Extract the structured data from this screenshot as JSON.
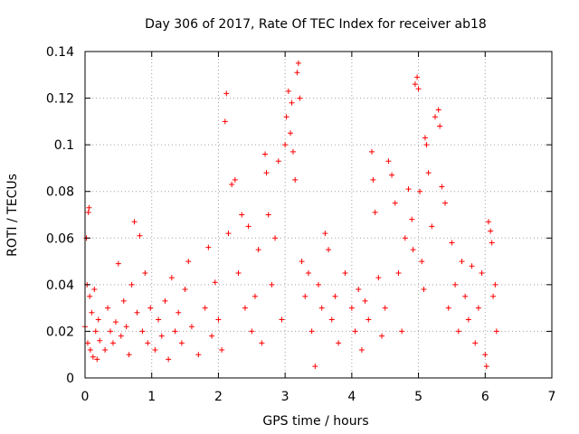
{
  "chart_data": {
    "type": "scatter",
    "title": "Day 306 of 2017, Rate Of TEC Index for receiver ab18",
    "xlabel": "GPS time / hours",
    "ylabel": "ROTI / TECUs",
    "xlim": [
      0,
      7
    ],
    "ylim": [
      0,
      0.14
    ],
    "xticks": [
      0,
      1,
      2,
      3,
      4,
      5,
      6,
      7
    ],
    "xtick_labels": [
      "0",
      "1",
      "2",
      "3",
      "4",
      "5",
      "6",
      "7"
    ],
    "yticks": [
      0,
      0.02,
      0.04,
      0.06,
      0.08,
      0.1,
      0.12,
      0.14
    ],
    "ytick_labels": [
      "0",
      "0.02",
      "0.04",
      "0.06",
      "0.08",
      "0.1",
      "0.12",
      "0.14"
    ],
    "grid": true,
    "marker": "+",
    "color": "#ff0000",
    "series": [
      {
        "name": "ROTI",
        "points": [
          [
            0.0,
            0.022
          ],
          [
            0.02,
            0.06
          ],
          [
            0.03,
            0.04
          ],
          [
            0.04,
            0.015
          ],
          [
            0.05,
            0.071
          ],
          [
            0.06,
            0.073
          ],
          [
            0.07,
            0.035
          ],
          [
            0.08,
            0.012
          ],
          [
            0.1,
            0.028
          ],
          [
            0.12,
            0.009
          ],
          [
            0.14,
            0.038
          ],
          [
            0.16,
            0.02
          ],
          [
            0.18,
            0.008
          ],
          [
            0.2,
            0.025
          ],
          [
            0.22,
            0.016
          ],
          [
            0.3,
            0.012
          ],
          [
            0.34,
            0.03
          ],
          [
            0.38,
            0.02
          ],
          [
            0.42,
            0.015
          ],
          [
            0.46,
            0.024
          ],
          [
            0.5,
            0.049
          ],
          [
            0.54,
            0.018
          ],
          [
            0.58,
            0.033
          ],
          [
            0.62,
            0.022
          ],
          [
            0.66,
            0.01
          ],
          [
            0.7,
            0.04
          ],
          [
            0.74,
            0.067
          ],
          [
            0.78,
            0.028
          ],
          [
            0.82,
            0.061
          ],
          [
            0.86,
            0.02
          ],
          [
            0.9,
            0.045
          ],
          [
            0.94,
            0.015
          ],
          [
            0.98,
            0.03
          ],
          [
            1.05,
            0.012
          ],
          [
            1.1,
            0.025
          ],
          [
            1.15,
            0.018
          ],
          [
            1.2,
            0.033
          ],
          [
            1.25,
            0.008
          ],
          [
            1.3,
            0.043
          ],
          [
            1.35,
            0.02
          ],
          [
            1.4,
            0.028
          ],
          [
            1.45,
            0.015
          ],
          [
            1.5,
            0.038
          ],
          [
            1.55,
            0.05
          ],
          [
            1.6,
            0.022
          ],
          [
            1.7,
            0.01
          ],
          [
            1.8,
            0.03
          ],
          [
            1.85,
            0.056
          ],
          [
            1.9,
            0.018
          ],
          [
            1.95,
            0.041
          ],
          [
            2.0,
            0.025
          ],
          [
            2.05,
            0.012
          ],
          [
            2.1,
            0.11
          ],
          [
            2.12,
            0.122
          ],
          [
            2.15,
            0.062
          ],
          [
            2.2,
            0.083
          ],
          [
            2.25,
            0.085
          ],
          [
            2.3,
            0.045
          ],
          [
            2.35,
            0.07
          ],
          [
            2.4,
            0.03
          ],
          [
            2.45,
            0.065
          ],
          [
            2.5,
            0.02
          ],
          [
            2.55,
            0.035
          ],
          [
            2.6,
            0.055
          ],
          [
            2.65,
            0.015
          ],
          [
            2.7,
            0.096
          ],
          [
            2.72,
            0.088
          ],
          [
            2.75,
            0.07
          ],
          [
            2.8,
            0.04
          ],
          [
            2.85,
            0.06
          ],
          [
            2.9,
            0.093
          ],
          [
            2.95,
            0.025
          ],
          [
            3.0,
            0.1
          ],
          [
            3.02,
            0.112
          ],
          [
            3.05,
            0.123
          ],
          [
            3.08,
            0.105
          ],
          [
            3.1,
            0.118
          ],
          [
            3.12,
            0.097
          ],
          [
            3.15,
            0.085
          ],
          [
            3.18,
            0.131
          ],
          [
            3.2,
            0.135
          ],
          [
            3.22,
            0.12
          ],
          [
            3.25,
            0.05
          ],
          [
            3.3,
            0.035
          ],
          [
            3.35,
            0.045
          ],
          [
            3.4,
            0.02
          ],
          [
            3.45,
            0.005
          ],
          [
            3.5,
            0.04
          ],
          [
            3.55,
            0.03
          ],
          [
            3.6,
            0.062
          ],
          [
            3.65,
            0.055
          ],
          [
            3.7,
            0.025
          ],
          [
            3.75,
            0.035
          ],
          [
            3.8,
            0.015
          ],
          [
            3.9,
            0.045
          ],
          [
            4.0,
            0.03
          ],
          [
            4.05,
            0.02
          ],
          [
            4.1,
            0.038
          ],
          [
            4.15,
            0.012
          ],
          [
            4.2,
            0.033
          ],
          [
            4.25,
            0.025
          ],
          [
            4.3,
            0.097
          ],
          [
            4.32,
            0.085
          ],
          [
            4.35,
            0.071
          ],
          [
            4.4,
            0.043
          ],
          [
            4.45,
            0.018
          ],
          [
            4.5,
            0.03
          ],
          [
            4.55,
            0.093
          ],
          [
            4.6,
            0.087
          ],
          [
            4.65,
            0.075
          ],
          [
            4.7,
            0.045
          ],
          [
            4.75,
            0.02
          ],
          [
            4.8,
            0.06
          ],
          [
            4.85,
            0.081
          ],
          [
            4.9,
            0.068
          ],
          [
            4.92,
            0.055
          ],
          [
            4.95,
            0.126
          ],
          [
            4.98,
            0.129
          ],
          [
            5.0,
            0.124
          ],
          [
            5.02,
            0.08
          ],
          [
            5.05,
            0.05
          ],
          [
            5.08,
            0.038
          ],
          [
            5.1,
            0.103
          ],
          [
            5.12,
            0.1
          ],
          [
            5.15,
            0.088
          ],
          [
            5.2,
            0.065
          ],
          [
            5.25,
            0.112
          ],
          [
            5.3,
            0.115
          ],
          [
            5.32,
            0.108
          ],
          [
            5.35,
            0.082
          ],
          [
            5.4,
            0.075
          ],
          [
            5.45,
            0.03
          ],
          [
            5.5,
            0.058
          ],
          [
            5.55,
            0.04
          ],
          [
            5.6,
            0.02
          ],
          [
            5.65,
            0.05
          ],
          [
            5.7,
            0.035
          ],
          [
            5.75,
            0.025
          ],
          [
            5.8,
            0.048
          ],
          [
            5.85,
            0.015
          ],
          [
            5.9,
            0.03
          ],
          [
            5.95,
            0.045
          ],
          [
            6.0,
            0.01
          ],
          [
            6.02,
            0.005
          ],
          [
            6.05,
            0.067
          ],
          [
            6.08,
            0.063
          ],
          [
            6.1,
            0.058
          ],
          [
            6.12,
            0.035
          ],
          [
            6.15,
            0.04
          ],
          [
            6.17,
            0.02
          ]
        ]
      }
    ]
  }
}
